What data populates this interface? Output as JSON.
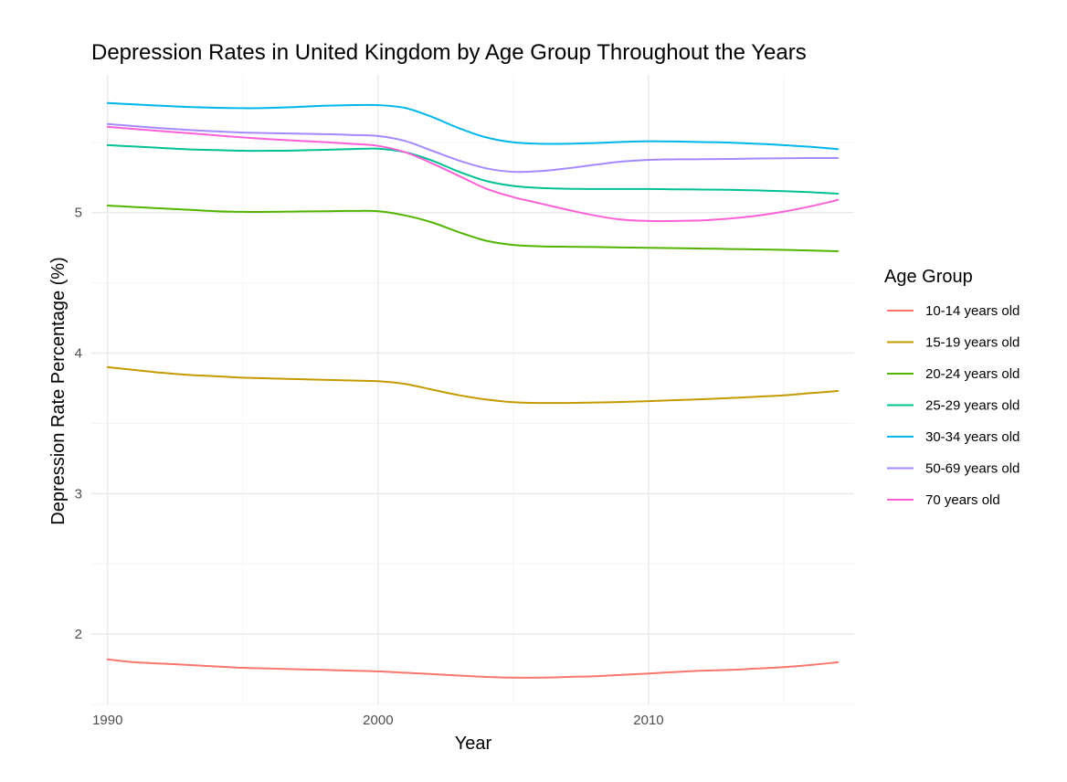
{
  "chart_data": {
    "type": "line",
    "title": "Depression Rates in United Kingdom by Age Group Throughout the Years",
    "xlabel": "Year",
    "ylabel": "Depression Rate Percentage (%)",
    "xlim": [
      1989.4,
      2017.6
    ],
    "ylim": [
      1.5,
      5.98
    ],
    "x_major_ticks": [
      1990,
      2000,
      2010
    ],
    "x_minor_ticks": [
      1995,
      2005,
      2015
    ],
    "y_major_ticks": [
      2,
      3,
      4,
      5
    ],
    "y_minor_ticks": [
      1.5,
      2.5,
      3.5,
      4.5,
      5.5
    ],
    "grid": true,
    "legend": {
      "title": "Age Group",
      "position": "right"
    },
    "x": [
      1990,
      1991,
      1992,
      1993,
      1994,
      1995,
      1996,
      1997,
      1998,
      1999,
      2000,
      2001,
      2002,
      2003,
      2004,
      2005,
      2006,
      2007,
      2008,
      2009,
      2010,
      2011,
      2012,
      2013,
      2014,
      2015,
      2016,
      2017
    ],
    "series": [
      {
        "name": "10-14 years old",
        "color": "#F8766D",
        "values": [
          1.82,
          1.8,
          1.79,
          1.78,
          1.77,
          1.76,
          1.755,
          1.75,
          1.745,
          1.74,
          1.735,
          1.725,
          1.715,
          1.705,
          1.695,
          1.69,
          1.69,
          1.695,
          1.7,
          1.71,
          1.72,
          1.73,
          1.74,
          1.745,
          1.755,
          1.765,
          1.78,
          1.8
        ]
      },
      {
        "name": "15-19 years old",
        "color": "#C49A00",
        "values": [
          3.9,
          3.88,
          3.86,
          3.845,
          3.835,
          3.825,
          3.82,
          3.815,
          3.81,
          3.805,
          3.8,
          3.78,
          3.74,
          3.7,
          3.67,
          3.65,
          3.645,
          3.645,
          3.648,
          3.652,
          3.658,
          3.665,
          3.672,
          3.68,
          3.69,
          3.7,
          3.715,
          3.73
        ]
      },
      {
        "name": "20-24 years old",
        "color": "#53B400",
        "values": [
          5.05,
          5.04,
          5.03,
          5.02,
          5.01,
          5.005,
          5.005,
          5.008,
          5.01,
          5.012,
          5.01,
          4.98,
          4.93,
          4.86,
          4.8,
          4.77,
          4.76,
          4.757,
          4.755,
          4.752,
          4.75,
          4.747,
          4.744,
          4.741,
          4.738,
          4.735,
          4.73,
          4.725
        ]
      },
      {
        "name": "25-29 years old",
        "color": "#00C094",
        "values": [
          5.48,
          5.47,
          5.46,
          5.45,
          5.445,
          5.44,
          5.44,
          5.442,
          5.447,
          5.452,
          5.455,
          5.43,
          5.37,
          5.29,
          5.225,
          5.19,
          5.175,
          5.17,
          5.168,
          5.168,
          5.168,
          5.166,
          5.164,
          5.162,
          5.158,
          5.152,
          5.145,
          5.135
        ]
      },
      {
        "name": "30-34 years old",
        "color": "#00B6EB",
        "values": [
          5.78,
          5.77,
          5.76,
          5.752,
          5.746,
          5.743,
          5.745,
          5.752,
          5.76,
          5.765,
          5.765,
          5.745,
          5.68,
          5.6,
          5.535,
          5.5,
          5.49,
          5.49,
          5.495,
          5.503,
          5.508,
          5.506,
          5.502,
          5.498,
          5.49,
          5.48,
          5.468,
          5.452
        ]
      },
      {
        "name": "50-69 years old",
        "color": "#A58AFF",
        "values": [
          5.63,
          5.615,
          5.6,
          5.588,
          5.578,
          5.57,
          5.565,
          5.562,
          5.558,
          5.553,
          5.545,
          5.51,
          5.44,
          5.37,
          5.315,
          5.29,
          5.295,
          5.315,
          5.34,
          5.363,
          5.375,
          5.379,
          5.38,
          5.382,
          5.385,
          5.387,
          5.388,
          5.388
        ]
      },
      {
        "name": "70 years old",
        "color": "#FB61D7",
        "values": [
          5.61,
          5.595,
          5.58,
          5.565,
          5.55,
          5.535,
          5.522,
          5.512,
          5.502,
          5.49,
          5.475,
          5.43,
          5.35,
          5.26,
          5.17,
          5.11,
          5.065,
          5.02,
          4.98,
          4.95,
          4.94,
          4.94,
          4.945,
          4.958,
          4.978,
          5.007,
          5.045,
          5.09
        ]
      }
    ]
  }
}
